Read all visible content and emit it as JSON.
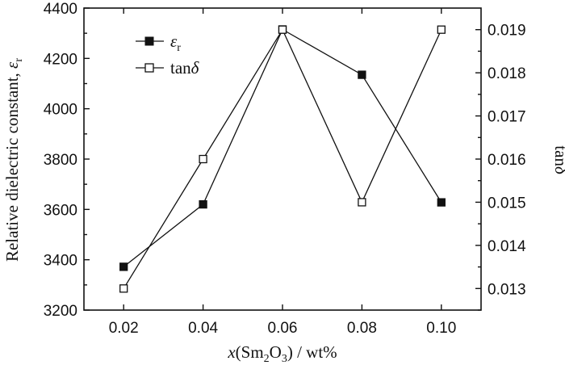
{
  "chart_data": {
    "type": "line",
    "x": [
      0.02,
      0.04,
      0.06,
      0.08,
      0.1
    ],
    "x_tick_labels": [
      "0.02",
      "0.04",
      "0.06",
      "0.08",
      "0.10"
    ],
    "xlim": [
      0.01,
      0.11
    ],
    "xlabel": {
      "italic": "x",
      "main": "(Sm",
      "sub1": "2",
      "mid": "O",
      "sub2": "3",
      "tail": ") / wt%"
    },
    "y_left": {
      "label_main": "Relative dielectric constant, ",
      "label_symbol": "ε",
      "label_sub": "r",
      "lim": [
        3200,
        4400
      ],
      "ticks": [
        3200,
        3400,
        3600,
        3800,
        4000,
        4200,
        4400
      ],
      "tick_labels": [
        "3200",
        "3400",
        "3600",
        "3800",
        "4000",
        "4200",
        "4400"
      ]
    },
    "y_right": {
      "label_main": "tan",
      "label_symbol": "δ",
      "lim": [
        0.0125,
        0.0195
      ],
      "ticks": [
        0.013,
        0.014,
        0.015,
        0.016,
        0.017,
        0.018,
        0.019
      ],
      "tick_labels": [
        "0.013",
        "0.014",
        "0.015",
        "0.016",
        "0.017",
        "0.018",
        "0.019"
      ]
    },
    "series": [
      {
        "name": "εr",
        "name_symbol": "ε",
        "name_sub": "r",
        "axis": "left",
        "marker": "filled-square",
        "values": [
          3372,
          3620,
          4315,
          4135,
          3628
        ]
      },
      {
        "name": "tanδ",
        "name_main": "tan",
        "name_symbol": "δ",
        "axis": "right",
        "marker": "open-square",
        "values": [
          0.013,
          0.016,
          0.019,
          0.015,
          0.019
        ]
      }
    ],
    "legend_position": "top-left",
    "grid": false
  }
}
